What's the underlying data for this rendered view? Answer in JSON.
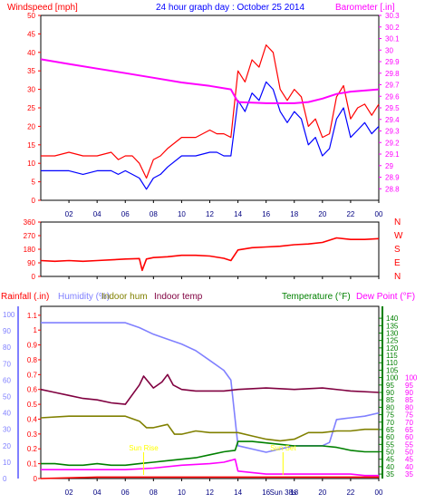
{
  "chart_data": [
    {
      "type": "line",
      "title": "24 hour graph day : October 25 2014",
      "ylabel_left": "Windspeed [mph]",
      "ylabel_right": "Barometer [.in]",
      "x_ticks": [
        "02",
        "04",
        "06",
        "08",
        "10",
        "12",
        "14",
        "16",
        "18",
        "20",
        "22",
        "00"
      ],
      "xlim": [
        0,
        24
      ],
      "ylim_left": [
        0,
        50
      ],
      "y_ticks_left": [
        0,
        5,
        10,
        15,
        20,
        25,
        30,
        35,
        40,
        45,
        50
      ],
      "ylim_right": [
        28.7,
        30.3
      ],
      "y_ticks_right": [
        28.8,
        28.9,
        29,
        29.1,
        29.2,
        29.3,
        29.4,
        29.5,
        29.6,
        29.7,
        29.8,
        29.9,
        30,
        30.1,
        30.2,
        30.3
      ],
      "grid": false,
      "series": [
        {
          "name": "Wind gust",
          "axis": "left",
          "color": "#ff0000",
          "x": [
            0,
            1,
            2,
            3,
            4,
            5,
            5.5,
            6,
            6.5,
            7,
            7.5,
            8,
            8.5,
            9,
            10,
            11,
            12,
            12.5,
            13,
            13.5,
            14,
            14.5,
            15,
            15.5,
            16,
            16.5,
            17,
            17.5,
            18,
            18.5,
            19,
            19.5,
            20,
            20.5,
            21,
            21.5,
            22,
            22.5,
            23,
            23.5,
            24
          ],
          "values": [
            12,
            12,
            13,
            12,
            12,
            13,
            11,
            12,
            12,
            10,
            6,
            11,
            12,
            14,
            17,
            17,
            19,
            18,
            18,
            17,
            35,
            32,
            38,
            36,
            42,
            40,
            30,
            27,
            30,
            28,
            20,
            22,
            17,
            18,
            28,
            31,
            22,
            25,
            26,
            23,
            26
          ]
        },
        {
          "name": "Wind average",
          "axis": "left",
          "color": "#0000ff",
          "x": [
            0,
            1,
            2,
            3,
            4,
            5,
            5.5,
            6,
            6.5,
            7,
            7.5,
            8,
            8.5,
            9,
            10,
            11,
            12,
            12.5,
            13,
            13.5,
            14,
            14.5,
            15,
            15.5,
            16,
            16.5,
            17,
            17.5,
            18,
            18.5,
            19,
            19.5,
            20,
            20.5,
            21,
            21.5,
            22,
            22.5,
            23,
            23.5,
            24
          ],
          "values": [
            8,
            8,
            8,
            7,
            8,
            8,
            7,
            8,
            7,
            6,
            3,
            6,
            7,
            9,
            12,
            12,
            13,
            13,
            12,
            12,
            27,
            24,
            29,
            27,
            32,
            30,
            24,
            21,
            24,
            22,
            15,
            17,
            12,
            14,
            22,
            25,
            17,
            19,
            21,
            18,
            20
          ]
        },
        {
          "name": "Barometer",
          "axis": "right",
          "color": "#ff00ff",
          "x": [
            0,
            2,
            4,
            6,
            8,
            10,
            12,
            13.5,
            14,
            16,
            18,
            19,
            20,
            21,
            22,
            23,
            24
          ],
          "values": [
            29.92,
            29.88,
            29.84,
            29.8,
            29.76,
            29.72,
            29.69,
            29.66,
            29.55,
            29.54,
            29.54,
            29.55,
            29.58,
            29.62,
            29.64,
            29.65,
            29.66
          ]
        }
      ]
    },
    {
      "type": "line",
      "ylabel_right_letters": [
        "N",
        "W",
        "S",
        "E",
        "N"
      ],
      "ylim": [
        0,
        360
      ],
      "y_ticks": [
        0,
        90,
        180,
        270,
        360
      ],
      "xlim": [
        0,
        24
      ],
      "x_ticks": [
        "02",
        "04",
        "06",
        "08",
        "10",
        "12",
        "14",
        "16",
        "18",
        "20",
        "22",
        "00"
      ],
      "grid": false,
      "series": [
        {
          "name": "Wind direction",
          "color": "#ff0000",
          "x": [
            0,
            1,
            2,
            3,
            4,
            5,
            6,
            7,
            7.2,
            7.5,
            8,
            9,
            10,
            11,
            12,
            13,
            13.5,
            14,
            15,
            16,
            17,
            18,
            19,
            20,
            21,
            22,
            23,
            24
          ],
          "values": [
            105,
            100,
            105,
            100,
            105,
            110,
            115,
            118,
            40,
            115,
            125,
            130,
            140,
            140,
            135,
            120,
            105,
            175,
            190,
            195,
            200,
            210,
            215,
            225,
            255,
            245,
            245,
            250
          ]
        }
      ]
    },
    {
      "type": "line",
      "labels_top": [
        "Rainfall (.in)",
        "Humidity (%)",
        "Indoor hum",
        "Indoor temp",
        "Temperature (°F)",
        "Dew Point (°F)"
      ],
      "xlim": [
        0,
        24
      ],
      "x_ticks": [
        "02",
        "04",
        "06",
        "08",
        "10",
        "12",
        "14",
        "16",
        "18",
        "20",
        "22",
        "00"
      ],
      "y_ticks_rain": [
        0,
        0.1,
        0.2,
        0.3,
        0.4,
        0.5,
        0.6,
        0.7,
        0.8,
        0.9,
        1,
        1.1
      ],
      "y_ticks_humidity": [
        0,
        10,
        20,
        30,
        40,
        50,
        60,
        70,
        80,
        90,
        100
      ],
      "y_ticks_temp": [
        35,
        40,
        45,
        50,
        55,
        60,
        65,
        70,
        75,
        80,
        85,
        90,
        95,
        100,
        105,
        110,
        115,
        120,
        125,
        130,
        135,
        140
      ],
      "y_ticks_dew": [
        35,
        40,
        45,
        50,
        55,
        60,
        65,
        70,
        75,
        80,
        85,
        90,
        95,
        100
      ],
      "ylim_temp": [
        32,
        148
      ],
      "annotations": [
        "Sun Rise",
        "Sun Set",
        "Sun 38s"
      ],
      "grid": false,
      "series": [
        {
          "name": "Humidity",
          "color": "#8080ff",
          "x": [
            0,
            2,
            4,
            6,
            7,
            8,
            9,
            10,
            11,
            12,
            13,
            13.5,
            14,
            15,
            16,
            17,
            18,
            19,
            20,
            20.5,
            21,
            22,
            23,
            24
          ],
          "values": [
            95,
            95,
            95,
            95,
            92,
            88,
            85,
            82,
            78,
            72,
            66,
            60,
            20,
            18,
            16,
            18,
            20,
            20,
            20,
            22,
            36,
            37,
            38,
            40
          ]
        },
        {
          "name": "Indoor hum",
          "color": "#808000",
          "x": [
            0,
            2,
            4,
            6,
            7,
            7.5,
            8,
            9,
            9.5,
            10,
            11,
            12,
            13,
            14,
            15,
            16,
            17,
            18,
            19,
            20,
            21,
            22,
            23,
            24
          ],
          "values": [
            37,
            38,
            38,
            38,
            35,
            31,
            31,
            33,
            27,
            27,
            29,
            28,
            28,
            28,
            26,
            24,
            23,
            24,
            28,
            28,
            29,
            29,
            30,
            30
          ]
        },
        {
          "name": "Indoor temp",
          "color": "#800040",
          "x": [
            0,
            1,
            2,
            3,
            4,
            5,
            6,
            7,
            7.3,
            8,
            8.6,
            9,
            9.4,
            10,
            11,
            12,
            13,
            14,
            16,
            18,
            20,
            22,
            24
          ],
          "values": [
            92,
            90,
            88,
            86,
            85,
            83,
            82,
            95,
            101,
            93,
            97,
            102,
            95,
            92,
            91,
            91,
            91,
            92,
            93,
            92,
            93,
            91,
            90
          ]
        },
        {
          "name": "Temperature",
          "color": "#008000",
          "x": [
            0,
            1,
            2,
            3,
            4,
            5,
            6,
            7,
            8,
            9,
            10,
            11,
            12,
            13,
            13.8,
            14,
            15,
            16,
            17,
            18,
            19,
            20,
            21,
            22,
            23,
            24
          ],
          "values": [
            42,
            42,
            41,
            41,
            42,
            41,
            41,
            42,
            43,
            44,
            45,
            46,
            48,
            50,
            51,
            57,
            57,
            56,
            55,
            54,
            54,
            54,
            53,
            51,
            50,
            50
          ]
        },
        {
          "name": "Dew Point",
          "color": "#ff00ff",
          "x": [
            0,
            2,
            4,
            6,
            8,
            10,
            12,
            13,
            13.8,
            14,
            15,
            16,
            18,
            20,
            22,
            23,
            24
          ],
          "values": [
            38,
            38,
            38,
            38,
            39,
            41,
            42,
            43,
            45,
            37,
            36,
            35,
            35,
            35,
            35,
            34,
            34
          ]
        },
        {
          "name": "Rainfall",
          "color": "#ff0000",
          "x": [
            0,
            4,
            24
          ],
          "values": [
            0,
            0.01,
            0.01
          ]
        }
      ]
    }
  ]
}
